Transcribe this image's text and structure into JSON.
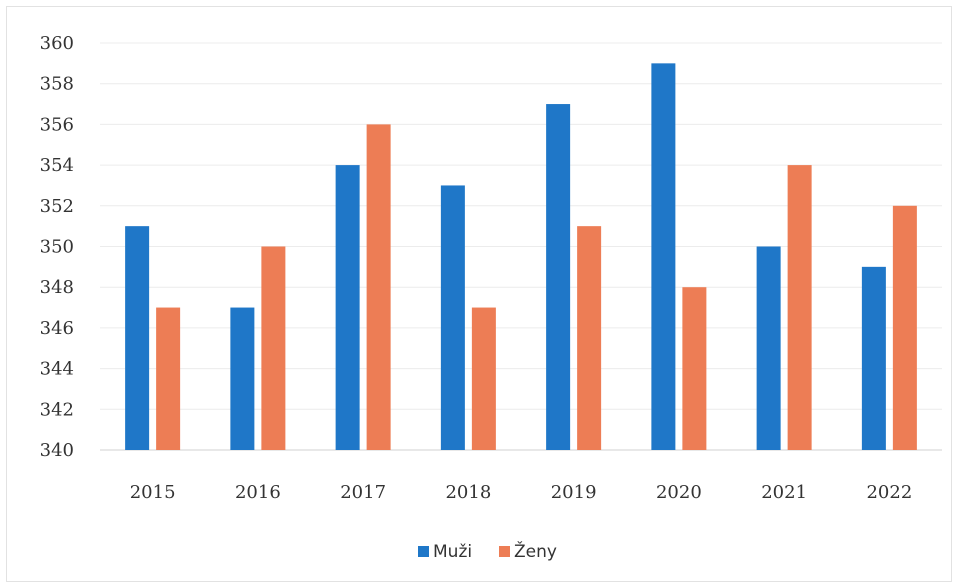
{
  "chart_data": {
    "type": "bar",
    "categories": [
      "2015",
      "2016",
      "2017",
      "2018",
      "2019",
      "2020",
      "2021",
      "2022"
    ],
    "series": [
      {
        "name": "Muži",
        "values": [
          351,
          347,
          354,
          353,
          357,
          359,
          350,
          349
        ],
        "color": "#1f77c8"
      },
      {
        "name": "Ženy",
        "values": [
          347,
          350,
          356,
          347,
          351,
          348,
          354,
          352
        ],
        "color": "#ed7d55"
      }
    ],
    "ylim": [
      340,
      360
    ],
    "yticks": [
      "340",
      "342",
      "344",
      "346",
      "348",
      "350",
      "352",
      "354",
      "356",
      "358",
      "360"
    ],
    "grid": true,
    "legend_position": "bottom-center"
  }
}
